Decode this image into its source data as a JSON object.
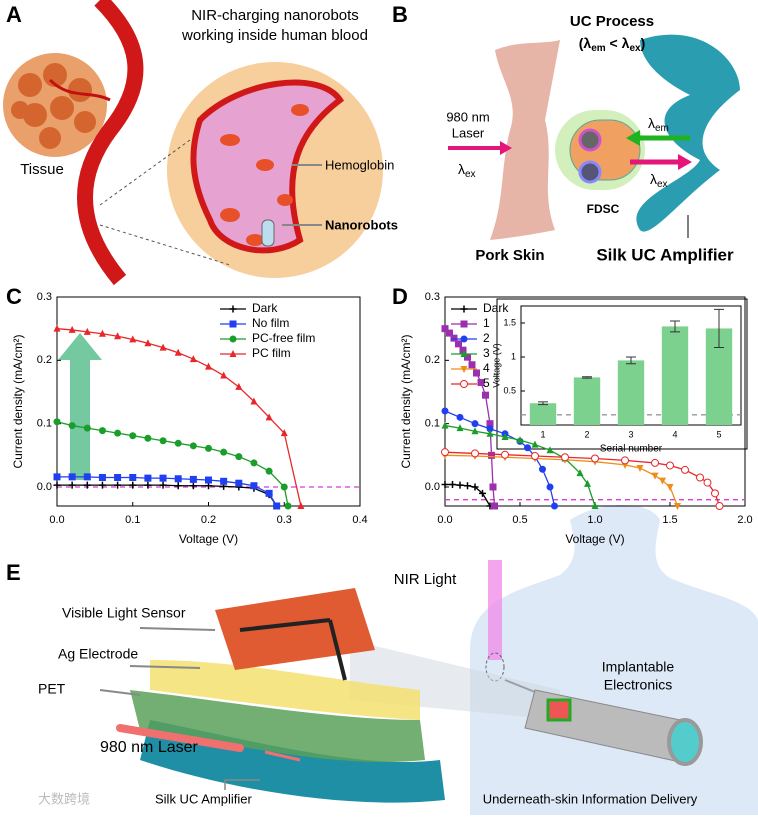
{
  "panels": [
    "A",
    "B",
    "C",
    "D",
    "E"
  ],
  "panel_a": {
    "title_lines": [
      "NIR-charging nanorobots",
      "working inside human blood"
    ],
    "tissue": "Tissue",
    "hemoglobin": "Hemoglobin",
    "nanorobots": "Nanorobots"
  },
  "panel_b": {
    "process": "UC Process",
    "relation": {
      "open": "(",
      "l1": "λ",
      "s1": "em",
      "op": " < ",
      "l2": "λ",
      "s2": "ex",
      "close": ")"
    },
    "laser_lines": [
      "980 nm",
      "Laser"
    ],
    "lambda_in": {
      "symbol": "λ",
      "sub": "ex"
    },
    "lambda_em": {
      "symbol": "λ",
      "sub": "em"
    },
    "lambda_out": {
      "symbol": "λ",
      "sub": "ex"
    },
    "fdsc": "FDSC",
    "pork_skin": "Pork Skin",
    "amplifier": "Silk UC Amplifier"
  },
  "panel_e": {
    "nir": "NIR Light",
    "sensor": "Visible Light Sensor",
    "electrode": "Ag Electrode",
    "pet": "PET",
    "laser": "980 nm Laser",
    "amplifier": "Silk UC Amplifier",
    "implant_lines": [
      "Implantable",
      "Electronics"
    ],
    "caption": "Underneath-skin Information Delivery"
  },
  "watermark": "大数跨境",
  "chart_data": [
    {
      "type": "line",
      "xlabel": "Voltage (V)",
      "ylabel": "Current density (mA/cm²)",
      "xlim": [
        0,
        0.4
      ],
      "ylim": [
        -0.03,
        0.3
      ],
      "xticks": [
        {
          "value": 0,
          "label": "0.0"
        },
        0.1,
        0.2,
        0.3,
        0.4
      ],
      "yticks": [
        {
          "value": 0,
          "label": "0.0"
        },
        0.1,
        0.2,
        0.3
      ],
      "legend": "upper right",
      "reference_line": {
        "value": 0,
        "color": "#d63cd6"
      },
      "series": [
        {
          "name": "Dark",
          "color": "#000000",
          "marker": "plus",
          "x": [
            0,
            0.02,
            0.04,
            0.06,
            0.08,
            0.1,
            0.12,
            0.14,
            0.16,
            0.18,
            0.2,
            0.22,
            0.24,
            0.26,
            0.28,
            0.29
          ],
          "values": [
            0.003,
            0.003,
            0.003,
            0.003,
            0.003,
            0.003,
            0.003,
            0.003,
            0.002,
            0.002,
            0.002,
            0.001,
            0,
            -0.002,
            -0.012,
            -0.03
          ]
        },
        {
          "name": "No film",
          "color": "#1f3ff0",
          "marker": "square",
          "x": [
            0,
            0.02,
            0.04,
            0.06,
            0.08,
            0.1,
            0.12,
            0.14,
            0.16,
            0.18,
            0.2,
            0.22,
            0.24,
            0.26,
            0.28,
            0.29
          ],
          "values": [
            0.016,
            0.016,
            0.016,
            0.015,
            0.015,
            0.015,
            0.014,
            0.014,
            0.013,
            0.012,
            0.011,
            0.009,
            0.006,
            0.002,
            -0.01,
            -0.03
          ]
        },
        {
          "name": "PC-free film",
          "color": "#1a9e2a",
          "marker": "circle",
          "x": [
            0,
            0.02,
            0.04,
            0.06,
            0.08,
            0.1,
            0.12,
            0.14,
            0.16,
            0.18,
            0.2,
            0.22,
            0.24,
            0.26,
            0.28,
            0.3,
            0.305
          ],
          "values": [
            0.103,
            0.097,
            0.093,
            0.089,
            0.085,
            0.081,
            0.077,
            0.073,
            0.069,
            0.065,
            0.061,
            0.055,
            0.048,
            0.038,
            0.025,
            0,
            -0.03
          ]
        },
        {
          "name": "PC film",
          "color": "#e8272a",
          "marker": "triangle",
          "x": [
            0,
            0.02,
            0.04,
            0.06,
            0.08,
            0.1,
            0.12,
            0.14,
            0.16,
            0.18,
            0.2,
            0.22,
            0.24,
            0.26,
            0.28,
            0.3,
            0.322
          ],
          "values": [
            0.25,
            0.248,
            0.245,
            0.242,
            0.238,
            0.233,
            0.227,
            0.22,
            0.212,
            0.202,
            0.19,
            0.176,
            0.158,
            0.135,
            0.11,
            0.085,
            -0.03
          ]
        }
      ]
    },
    {
      "type": "line",
      "xlabel": "Voltage (V)",
      "ylabel": "Current density (mA/cm²)",
      "xlim": [
        0,
        2
      ],
      "ylim": [
        -0.03,
        0.3
      ],
      "xticks": [
        {
          "value": 0,
          "label": "0.0"
        },
        0.5,
        {
          "value": 1,
          "label": "1.0"
        },
        1.5,
        {
          "value": 2,
          "label": "2.0"
        }
      ],
      "yticks": [
        {
          "value": 0,
          "label": "0.0"
        },
        0.1,
        0.2,
        0.3
      ],
      "legend": "upper left",
      "reference_line": {
        "value": -0.02,
        "color": "#d63cd6"
      },
      "series": [
        {
          "name": "Dark",
          "color": "#000000",
          "marker": "plus",
          "x": [
            0,
            0.05,
            0.1,
            0.15,
            0.2,
            0.25,
            0.3
          ],
          "values": [
            0.004,
            0.004,
            0.003,
            0.002,
            0,
            -0.01,
            -0.03
          ]
        },
        {
          "name": "1",
          "color": "#9b2fae",
          "marker": "square",
          "x": [
            0,
            0.03,
            0.06,
            0.09,
            0.12,
            0.15,
            0.18,
            0.21,
            0.24,
            0.27,
            0.3,
            0.31,
            0.32,
            0.33
          ],
          "values": [
            0.25,
            0.243,
            0.235,
            0.226,
            0.216,
            0.205,
            0.193,
            0.18,
            0.165,
            0.145,
            0.1,
            0.05,
            0,
            -0.03
          ]
        },
        {
          "name": "2",
          "color": "#1f3ff0",
          "marker": "circle",
          "x": [
            0,
            0.1,
            0.2,
            0.3,
            0.4,
            0.5,
            0.55,
            0.6,
            0.65,
            0.7,
            0.73
          ],
          "values": [
            0.12,
            0.11,
            0.1,
            0.092,
            0.084,
            0.072,
            0.062,
            0.048,
            0.028,
            0,
            -0.03
          ]
        },
        {
          "name": "3",
          "color": "#1a9e2a",
          "marker": "triangle",
          "x": [
            0,
            0.1,
            0.2,
            0.3,
            0.4,
            0.5,
            0.6,
            0.7,
            0.8,
            0.9,
            0.95,
            1.0
          ],
          "values": [
            0.097,
            0.093,
            0.088,
            0.084,
            0.079,
            0.074,
            0.067,
            0.058,
            0.045,
            0.022,
            0.005,
            -0.03
          ]
        },
        {
          "name": "4",
          "color": "#f08c1a",
          "marker": "down-triangle",
          "x": [
            0,
            0.2,
            0.4,
            0.6,
            0.8,
            1.0,
            1.2,
            1.3,
            1.4,
            1.45,
            1.5,
            1.55
          ],
          "values": [
            0.05,
            0.049,
            0.047,
            0.045,
            0.043,
            0.04,
            0.035,
            0.03,
            0.018,
            0.01,
            0,
            -0.03
          ]
        },
        {
          "name": "5",
          "color": "#e8272a",
          "marker": "open-circle",
          "x": [
            0,
            0.2,
            0.4,
            0.6,
            0.8,
            1.0,
            1.2,
            1.4,
            1.5,
            1.6,
            1.7,
            1.75,
            1.8,
            1.83
          ],
          "values": [
            0.055,
            0.053,
            0.051,
            0.049,
            0.047,
            0.045,
            0.042,
            0.038,
            0.034,
            0.027,
            0.015,
            0.007,
            -0.01,
            -0.03
          ]
        }
      ]
    },
    {
      "type": "bar",
      "xlabel": "Serial number",
      "ylabel": "Voltage (V)",
      "categories": [
        "1",
        "2",
        "3",
        "4",
        "5"
      ],
      "values": [
        0.32,
        0.7,
        0.95,
        1.45,
        1.42
      ],
      "errors": [
        0.02,
        0.01,
        0.05,
        0.08,
        0.28
      ],
      "color": "#7dd18e",
      "ylim": [
        0,
        1.75
      ],
      "yticks": [
        0.5,
        1,
        1.5
      ],
      "reference_line": {
        "value": 0.15,
        "color": "#999999"
      }
    }
  ]
}
